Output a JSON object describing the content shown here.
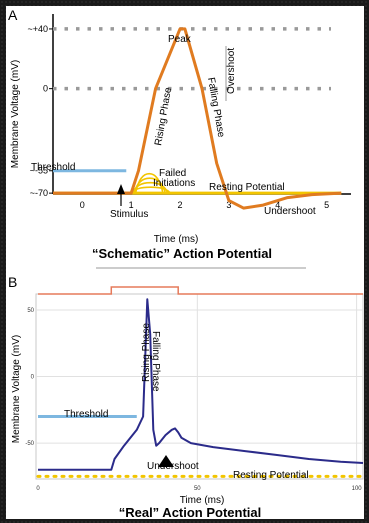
{
  "chart_data": [
    {
      "panel": "A",
      "type": "line",
      "title": "“Schematic” Action Potential",
      "xlabel": "Time (ms)",
      "ylabel": "Membrane Voltage (mV)",
      "xticks": [
        "0",
        "1",
        "2",
        "3",
        "4",
        "5"
      ],
      "yticks": [
        "~+40",
        "0",
        "~-55",
        "~-70"
      ],
      "xlim": [
        -0.6,
        5.5
      ],
      "ylim": [
        -88,
        50
      ],
      "reference_lines": [
        {
          "y": 40,
          "style": "dotted",
          "color": "#9a9a9a"
        },
        {
          "y": 0,
          "style": "dotted",
          "color": "#9a9a9a"
        }
      ],
      "threshold": {
        "label": "Threshold",
        "y": -55,
        "x": [
          -0.6,
          0.9
        ],
        "color": "#7db7e0"
      },
      "resting_line": {
        "y": -70,
        "x": [
          -0.6,
          5.3
        ],
        "color": "#f2c500"
      },
      "failed_initiations": {
        "label": "Failed\nInitiations",
        "color": "#f2c500",
        "peaks": [
          -66,
          -63,
          -60,
          -57
        ],
        "x_start": 1.0,
        "x_end": 1.8
      },
      "series": [
        {
          "color": "#e07b20",
          "x": [
            -0.6,
            1.0,
            1.15,
            1.5,
            2.0,
            2.1,
            2.45,
            2.75,
            3.0,
            3.3,
            3.7,
            4.2,
            4.7,
            5.3
          ],
          "y": [
            -70,
            -70,
            -55,
            0,
            40,
            40,
            0,
            -50,
            -75,
            -80,
            -78,
            -73,
            -71,
            -70
          ]
        }
      ],
      "annotations": [
        "Peak",
        "Rising Phase",
        "Falling Phase",
        "Overshoot",
        "Resting Potential",
        "Undershoot",
        "Stimulus"
      ]
    },
    {
      "panel": "B",
      "type": "line",
      "title": "“Real” Action Potential",
      "xlabel": "Time (ms)",
      "ylabel": "Membrane Voltage (mV)",
      "xticks": [
        "0",
        "50",
        "100"
      ],
      "yticks": [
        "50",
        "0",
        "-50"
      ],
      "xlim": [
        0,
        102
      ],
      "ylim": [
        -80,
        62
      ],
      "stimulus_bar": {
        "x": [
          23,
          44
        ]
      },
      "threshold": {
        "label": "Threshold",
        "y": -30,
        "x": [
          0,
          31
        ],
        "color": "#7db7e0"
      },
      "resting_line": {
        "y": -75,
        "x": [
          0,
          102
        ],
        "color": "#f2c500"
      },
      "series": [
        {
          "color": "#2b2b8a",
          "x": [
            0,
            23,
            24,
            27,
            31,
            33,
            34.3,
            35.2,
            36.2,
            37.1,
            38,
            40,
            42,
            43,
            44,
            45,
            48,
            55,
            65,
            75,
            85,
            95,
            102
          ],
          "y": [
            -70,
            -70,
            -62,
            -52,
            -40,
            -30,
            58,
            32,
            -40,
            -52,
            -50,
            -44,
            -40,
            -39,
            -42,
            -46,
            -50,
            -53,
            -56,
            -59,
            -62,
            -64,
            -65
          ]
        }
      ],
      "annotations": [
        "Rising Phase",
        "Falling Phase",
        "Undershoot",
        "Resting Potential"
      ]
    }
  ]
}
